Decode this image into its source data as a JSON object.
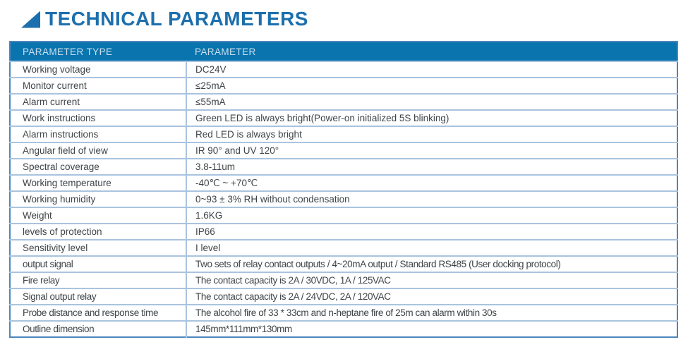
{
  "header": {
    "title": "TECHNICAL PARAMETERS",
    "accent_color": "#1C6FAD"
  },
  "table": {
    "columns": [
      "PARAMETER TYPE",
      "PARAMETER"
    ],
    "rows": [
      [
        "Working voltage",
        "DC24V"
      ],
      [
        "Monitor current",
        "≤25mA"
      ],
      [
        "Alarm current",
        "≤55mA"
      ],
      [
        "Work instructions",
        "Green LED is always bright(Power-on initialized 5S blinking)"
      ],
      [
        "Alarm instructions",
        "Red LED is always bright"
      ],
      [
        "Angular field of view",
        "IR 90° and UV 120°"
      ],
      [
        "Spectral coverage",
        "3.8-11um"
      ],
      [
        "Working temperature",
        "-40℃ ~ +70℃"
      ],
      [
        "Working humidity",
        "0~93 ± 3% RH without condensation"
      ],
      [
        "Weight",
        "1.6KG"
      ],
      [
        "levels of protection",
        "IP66"
      ],
      [
        "Sensitivity level",
        "I level"
      ],
      [
        "output signal",
        "Two sets of relay contact outputs / 4~20mA output / Standard RS485 (User docking protocol)"
      ],
      [
        "Fire relay",
        "The contact capacity is 2A / 30VDC, 1A / 125VAC"
      ],
      [
        "Signal output relay",
        "The contact capacity is 2A / 24VDC, 2A / 120VAC"
      ],
      [
        "Probe distance and response time",
        "The alcohol fire of 33 * 33cm and n-heptane fire of 25m can alarm within 30s"
      ],
      [
        "Outline dimension",
        "145mm*111mm*130mm"
      ]
    ],
    "colors": {
      "header_bg": "#0A74AE",
      "header_text": "#C9DFEF",
      "outer_border": "#4C86BE",
      "inner_border": "#A9C3DF",
      "cell_text": "#3F4448"
    }
  }
}
